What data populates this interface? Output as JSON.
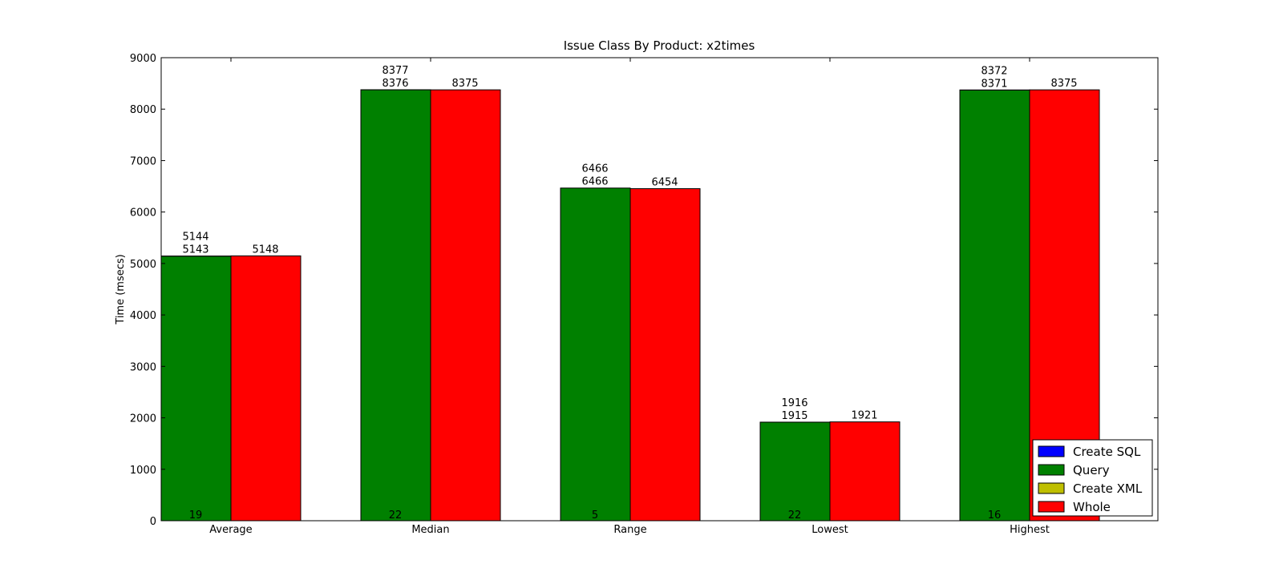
{
  "chart_data": {
    "type": "bar",
    "title": "Issue Class By Product: x2times",
    "xlabel": "",
    "ylabel": "Time (msecs)",
    "ylim": [
      0,
      9000
    ],
    "yticks": [
      0,
      1000,
      2000,
      3000,
      4000,
      5000,
      6000,
      7000,
      8000,
      9000
    ],
    "categories": [
      "Average",
      "Median",
      "Range",
      "Lowest",
      "Highest"
    ],
    "series": [
      {
        "name": "Create SQL",
        "color": "#0000ff",
        "stack": "a",
        "values": [
          0,
          0,
          0,
          0,
          0
        ],
        "labels": [
          "",
          "",
          "",
          "",
          ""
        ]
      },
      {
        "name": "Query",
        "color": "#008000",
        "stack": "a",
        "values": [
          5143,
          8376,
          6466,
          1915,
          8371
        ],
        "labels": [
          "5143",
          "8376",
          "6466",
          "1915",
          "8371"
        ]
      },
      {
        "name": "Create XML",
        "color": "#bfbf00",
        "stack": "a",
        "values": [
          1,
          1,
          0,
          1,
          1
        ],
        "labels": [
          "5144",
          "8377",
          "6466",
          "1916",
          "8372"
        ]
      },
      {
        "name": "Whole",
        "color": "#ff0000",
        "stack": "b",
        "values": [
          5148,
          8375,
          6454,
          1921,
          8375
        ],
        "labels": [
          "5148",
          "8375",
          "6454",
          "1921",
          "8375"
        ]
      }
    ],
    "base_labels": [
      "19",
      "22",
      "5",
      "22",
      "16"
    ],
    "grid": false,
    "legend": "bottom-right"
  }
}
